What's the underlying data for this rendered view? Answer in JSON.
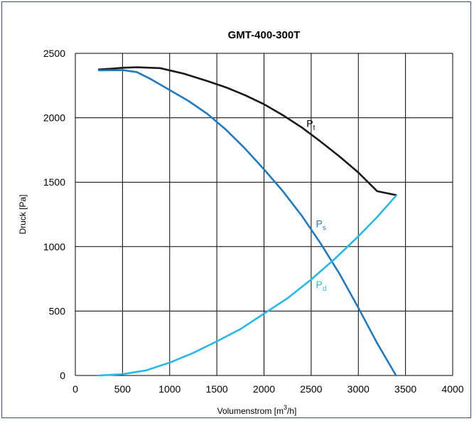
{
  "chart_data": {
    "type": "line",
    "title": "GMT-400-300T",
    "xlabel": "Volumenstrom [m",
    "xlabel_sup": "3",
    "xlabel_end": "/h]",
    "ylabel": "Druck [Pa]",
    "xlim": [
      0,
      4000
    ],
    "ylim": [
      0,
      2500
    ],
    "x_ticks": [
      0,
      500,
      1000,
      1500,
      2000,
      2500,
      3000,
      3500,
      4000
    ],
    "y_ticks": [
      0,
      500,
      1000,
      1500,
      2000,
      2500
    ],
    "grid": true,
    "series": [
      {
        "name": "Pt",
        "label_main": "P",
        "label_sub": "t",
        "color": "#1a1a1a",
        "x": [
          250,
          400,
          500,
          650,
          900,
          1150,
          1400,
          1600,
          1800,
          2000,
          2200,
          2400,
          2600,
          2800,
          3000,
          3200,
          3400
        ],
        "y": [
          2375,
          2382,
          2388,
          2392,
          2385,
          2342,
          2285,
          2235,
          2175,
          2105,
          2020,
          1925,
          1815,
          1700,
          1575,
          1430,
          1400
        ]
      },
      {
        "name": "Ps",
        "label_main": "P",
        "label_sub": "s",
        "color": "#1f7bc0",
        "x": [
          250,
          500,
          650,
          800,
          1000,
          1200,
          1400,
          1600,
          1800,
          2000,
          2200,
          2400,
          2600,
          2800,
          3000,
          3200,
          3400
        ],
        "y": [
          2368,
          2370,
          2355,
          2300,
          2215,
          2130,
          2030,
          1905,
          1760,
          1600,
          1430,
          1240,
          1025,
          790,
          525,
          250,
          0
        ]
      },
      {
        "name": "Pd",
        "label_main": "P",
        "label_sub": "d",
        "color": "#27b8e8",
        "x": [
          250,
          500,
          750,
          1000,
          1250,
          1500,
          1750,
          2000,
          2250,
          2500,
          2750,
          3000,
          3200,
          3400
        ],
        "y": [
          0,
          10,
          40,
          100,
          175,
          265,
          360,
          480,
          600,
          745,
          905,
          1080,
          1230,
          1395
        ]
      }
    ]
  }
}
